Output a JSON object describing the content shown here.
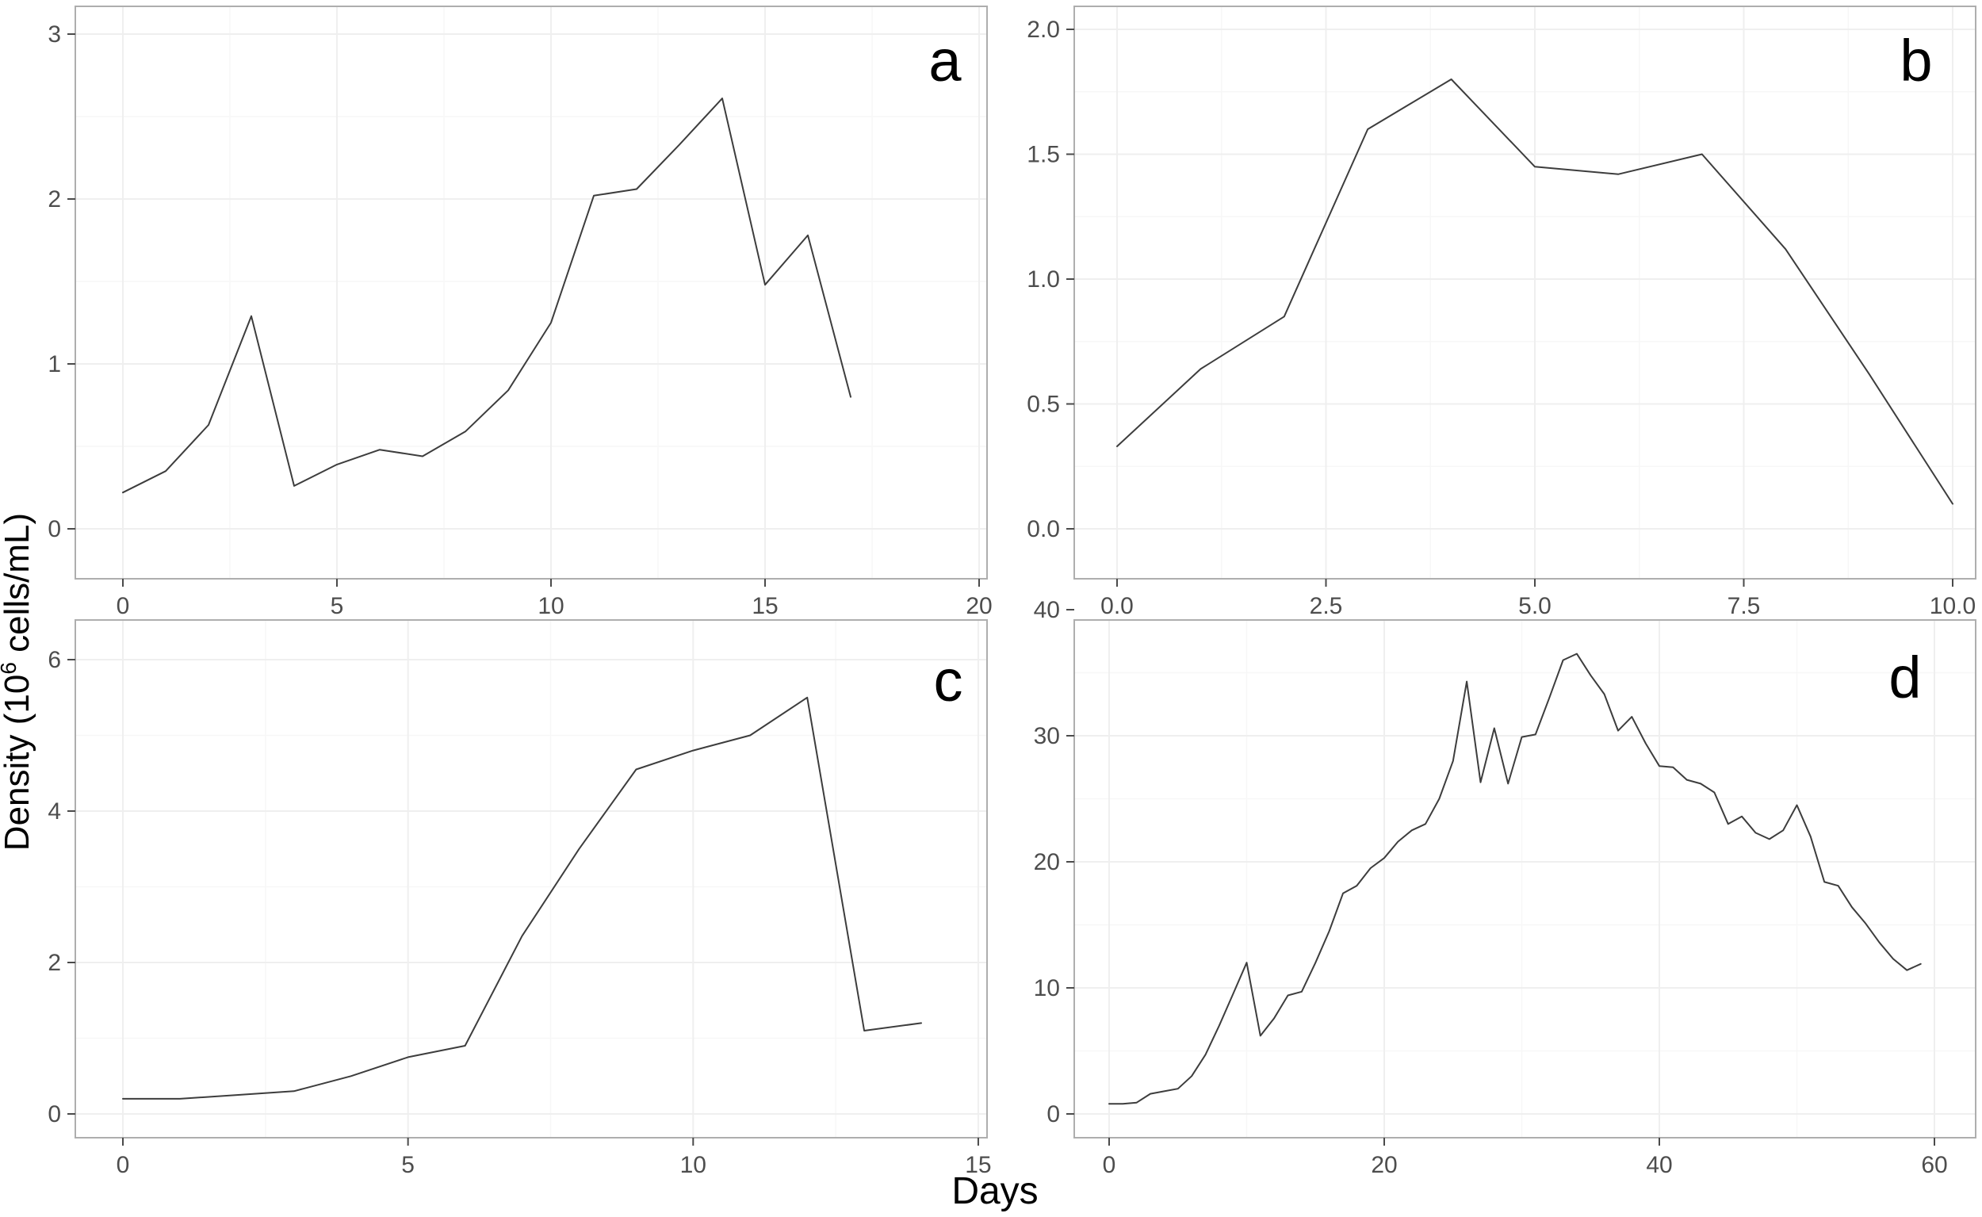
{
  "figure": {
    "x_axis_title": "Days",
    "y_axis_title": "Density (10⁶ cells/mL)",
    "y_axis_title_parts": {
      "prefix": "Density (10",
      "superscript": "6",
      "suffix": " cells/mL)"
    }
  },
  "colors": {
    "line": "#3d3d3d",
    "panel_border": "#aeaeae",
    "grid_major": "#efefef",
    "grid_minor": "#f7f7f7",
    "tick_mark": "#4a4a4a",
    "tick_text": "#4d4d4d",
    "title_text": "#000000",
    "panel_label_text": "#000000",
    "background": "#ffffff"
  },
  "chart_data": [
    {
      "type": "line",
      "label": "a",
      "xlabel": "Days",
      "ylabel": "Density (10⁶ cells/mL)",
      "xlim": [
        0,
        20
      ],
      "ylim": [
        0,
        3
      ],
      "x_ticks": [
        0,
        5,
        10,
        15,
        20
      ],
      "x_tick_labels": [
        "0",
        "5",
        "10",
        "15",
        "20"
      ],
      "x_minor": [
        2.5,
        7.5,
        12.5,
        17.5
      ],
      "y_ticks": [
        0,
        1,
        2,
        3
      ],
      "y_tick_labels": [
        "0",
        "1",
        "2",
        "3"
      ],
      "y_minor": [
        0.5,
        1.5,
        2.5
      ],
      "grid": true,
      "legend": "none",
      "x": [
        0,
        1,
        2,
        3,
        4,
        5,
        6,
        7,
        8,
        9,
        10,
        11,
        12,
        13,
        14,
        15,
        16,
        17
      ],
      "values": [
        0.22,
        0.35,
        0.63,
        1.29,
        0.26,
        0.39,
        0.48,
        0.44,
        0.59,
        0.84,
        1.25,
        2.02,
        2.06,
        2.33,
        2.61,
        1.48,
        1.78,
        0.8
      ]
    },
    {
      "type": "line",
      "label": "b",
      "xlabel": "Days",
      "ylabel": "Density (10⁶ cells/mL)",
      "xlim": [
        0,
        10
      ],
      "ylim": [
        0,
        2
      ],
      "x_ticks": [
        0,
        2.5,
        5,
        7.5,
        10
      ],
      "x_tick_labels": [
        "0.0",
        "2.5",
        "5.0",
        "7.5",
        "10.0"
      ],
      "x_minor": [
        1.25,
        3.75,
        6.25,
        8.75
      ],
      "y_ticks": [
        0,
        0.5,
        1,
        1.5,
        2
      ],
      "y_tick_labels": [
        "0.0",
        "0.5",
        "1.0",
        "1.5",
        "2.0"
      ],
      "y_minor": [
        0.25,
        0.75,
        1.25,
        1.75
      ],
      "grid": true,
      "legend": "none",
      "x": [
        0,
        1,
        2,
        3,
        4,
        5,
        6,
        7,
        8,
        9,
        10
      ],
      "values": [
        0.33,
        0.64,
        0.85,
        1.6,
        1.8,
        1.45,
        1.42,
        1.5,
        1.12,
        0.62,
        0.1
      ]
    },
    {
      "type": "line",
      "label": "c",
      "xlabel": "Days",
      "ylabel": "Density (10⁶ cells/mL)",
      "xlim": [
        0,
        15
      ],
      "ylim": [
        0,
        6
      ],
      "x_ticks": [
        0,
        5,
        10,
        15
      ],
      "x_tick_labels": [
        "0",
        "5",
        "10",
        "15"
      ],
      "x_minor": [
        2.5,
        7.5,
        12.5
      ],
      "y_ticks": [
        0,
        2,
        4,
        6
      ],
      "y_tick_labels": [
        "0",
        "2",
        "4",
        "6"
      ],
      "y_minor": [
        1,
        3,
        5
      ],
      "grid": true,
      "legend": "none",
      "x": [
        0,
        1,
        2,
        3,
        4,
        5,
        6,
        7,
        8,
        9,
        10,
        11,
        12,
        13,
        14
      ],
      "values": [
        0.2,
        0.2,
        0.25,
        0.3,
        0.5,
        0.75,
        0.9,
        2.35,
        3.5,
        4.55,
        4.8,
        5.0,
        5.5,
        1.1,
        1.2
      ]
    },
    {
      "type": "line",
      "label": "d",
      "xlabel": "Days",
      "ylabel": "Density (10⁶ cells/mL)",
      "xlim": [
        0,
        60
      ],
      "ylim": [
        0,
        40
      ],
      "x_ticks": [
        0,
        20,
        40,
        60
      ],
      "x_tick_labels": [
        "0",
        "20",
        "40",
        "60"
      ],
      "x_minor": [
        10,
        30,
        50
      ],
      "y_ticks": [
        0,
        10,
        20,
        30,
        40
      ],
      "y_tick_labels": [
        "0",
        "10",
        "20",
        "30",
        "40"
      ],
      "y_minor": [
        5,
        15,
        25,
        35
      ],
      "grid": true,
      "legend": "none",
      "x": [
        0,
        1,
        2,
        3,
        4,
        5,
        6,
        7,
        8,
        9,
        10,
        11,
        12,
        13,
        14,
        15,
        16,
        17,
        18,
        19,
        20,
        21,
        22,
        23,
        24,
        25,
        26,
        27,
        28,
        29,
        30,
        31,
        32,
        33,
        34,
        35,
        36,
        37,
        38,
        39,
        40,
        41,
        42,
        43,
        44,
        45,
        46,
        47,
        48,
        49,
        50,
        51,
        52,
        53,
        54,
        55,
        56,
        57,
        58,
        59
      ],
      "values": [
        0.8,
        0.8,
        0.9,
        1.6,
        1.8,
        2.0,
        3.0,
        4.7,
        7.0,
        9.5,
        12.0,
        6.2,
        7.6,
        9.4,
        9.7,
        12.0,
        14.5,
        17.5,
        18.1,
        19.5,
        20.3,
        21.6,
        22.5,
        23.0,
        25.0,
        28.0,
        34.3,
        26.3,
        30.6,
        26.2,
        29.9,
        30.1,
        33.0,
        36.0,
        36.5,
        34.8,
        33.3,
        30.4,
        31.5,
        29.4,
        27.6,
        27.5,
        26.5,
        26.2,
        25.5,
        23.0,
        23.6,
        22.3,
        21.8,
        22.5,
        24.5,
        22.0,
        18.4,
        18.1,
        16.4,
        15.1,
        13.6,
        12.3,
        11.4,
        11.9
      ]
    }
  ]
}
